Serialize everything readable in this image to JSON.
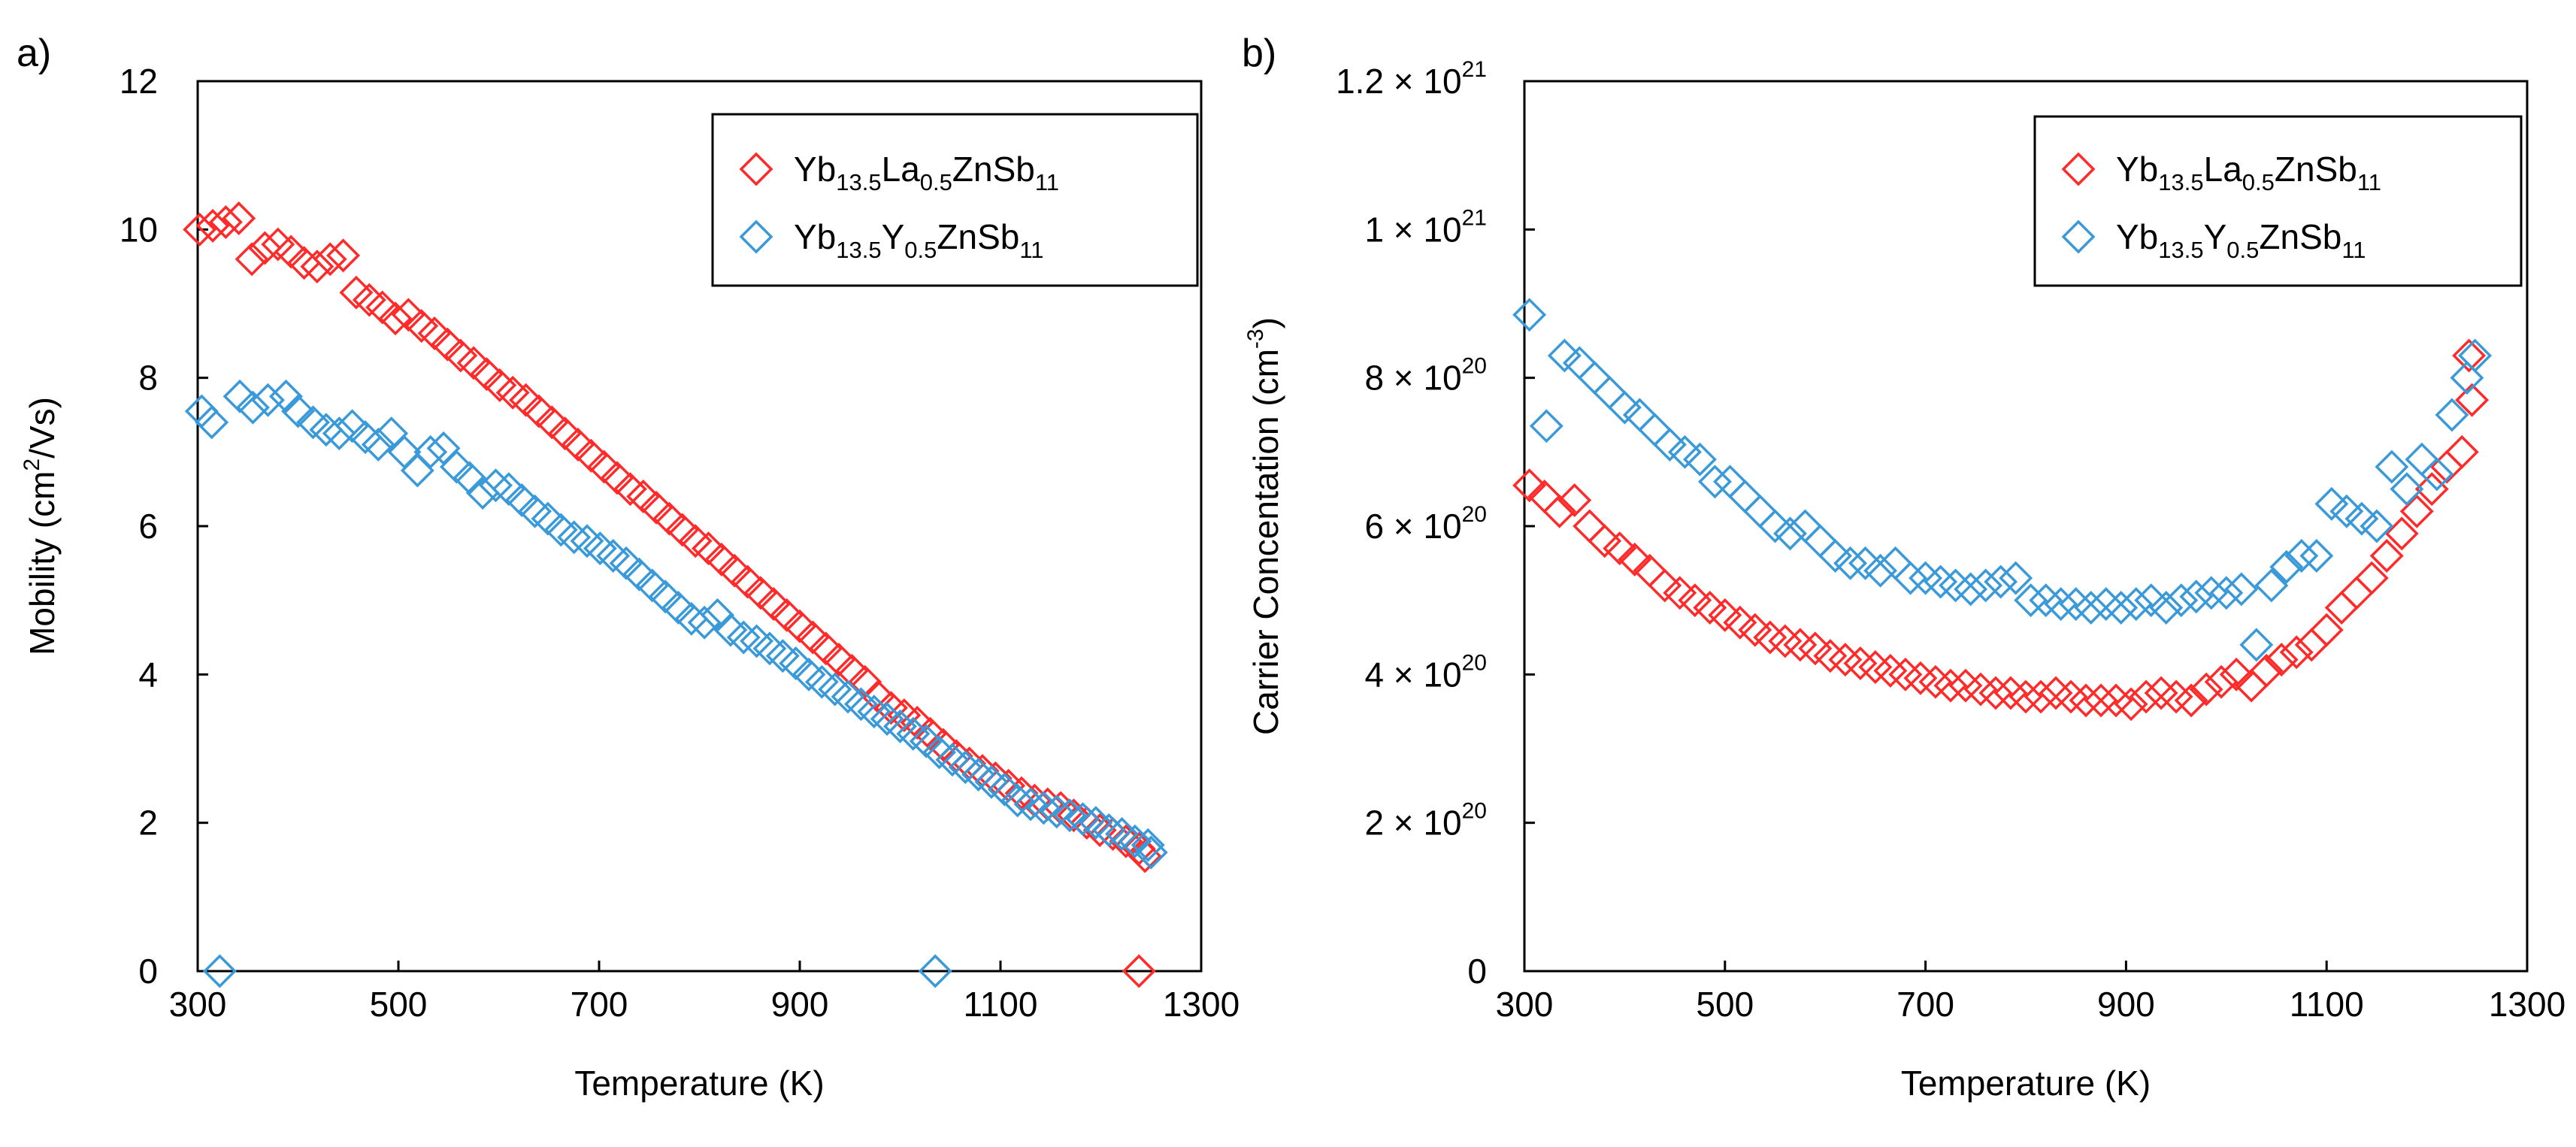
{
  "chart_data": [
    {
      "panel": "a)",
      "type": "scatter",
      "xlabel": "Temperature (K)",
      "ylabel": {
        "pre": "Mobility (cm",
        "sup": "2",
        "post": "/Vs)"
      },
      "xlim": [
        300,
        1300
      ],
      "ylim": [
        0,
        12
      ],
      "xticks": [
        300,
        500,
        700,
        900,
        1100,
        1300
      ],
      "yticks": [
        0,
        2,
        4,
        6,
        8,
        10,
        12
      ],
      "grid": false,
      "legend_position": "top-right",
      "series": [
        {
          "name": "Yb13.5La0.5ZnSb11",
          "legend": [
            {
              "t": "Yb",
              "s": ""
            },
            {
              "t": "13.5",
              "s": "sub"
            },
            {
              "t": "La",
              "s": ""
            },
            {
              "t": "0.5",
              "s": "sub"
            },
            {
              "t": "ZnSb",
              "s": ""
            },
            {
              "t": "11",
              "s": "sub"
            }
          ],
          "color": "#ff2a2a",
          "x": [
            302,
            315,
            328,
            341,
            354,
            367,
            380,
            393,
            406,
            419,
            432,
            445,
            458,
            471,
            484,
            497,
            510,
            523,
            536,
            549,
            562,
            575,
            588,
            601,
            614,
            627,
            640,
            653,
            666,
            679,
            692,
            705,
            718,
            731,
            744,
            757,
            770,
            783,
            796,
            809,
            822,
            835,
            848,
            861,
            874,
            887,
            900,
            913,
            926,
            939,
            952,
            965,
            978,
            991,
            1004,
            1017,
            1030,
            1043,
            1056,
            1069,
            1082,
            1095,
            1108,
            1121,
            1134,
            1147,
            1160,
            1173,
            1186,
            1199,
            1212,
            1225,
            1238,
            1244,
            1238
          ],
          "y": [
            10.0,
            10.05,
            10.1,
            10.15,
            9.6,
            9.75,
            9.8,
            9.7,
            9.55,
            9.5,
            9.6,
            9.65,
            9.15,
            9.05,
            8.95,
            8.8,
            8.85,
            8.7,
            8.6,
            8.45,
            8.3,
            8.2,
            8.05,
            7.9,
            7.8,
            7.7,
            7.55,
            7.4,
            7.25,
            7.1,
            6.95,
            6.8,
            6.65,
            6.5,
            6.4,
            6.25,
            6.1,
            5.95,
            5.8,
            5.7,
            5.55,
            5.4,
            5.25,
            5.1,
            4.95,
            4.8,
            4.65,
            4.5,
            4.35,
            4.2,
            4.05,
            3.9,
            3.7,
            3.55,
            3.45,
            3.35,
            3.2,
            3.05,
            2.9,
            2.8,
            2.7,
            2.6,
            2.5,
            2.4,
            2.3,
            2.25,
            2.2,
            2.1,
            2.0,
            1.9,
            1.85,
            1.75,
            1.65,
            1.55,
            0.0
          ]
        },
        {
          "name": "Yb13.5Y0.5ZnSb11",
          "legend": [
            {
              "t": "Yb",
              "s": ""
            },
            {
              "t": "13.5",
              "s": "sub"
            },
            {
              "t": "Y",
              "s": ""
            },
            {
              "t": "0.5",
              "s": "sub"
            },
            {
              "t": "ZnSb",
              "s": ""
            },
            {
              "t": "11",
              "s": "sub"
            }
          ],
          "color": "#3a9ad9",
          "x": [
            304,
            314,
            342,
            355,
            370,
            388,
            400,
            415,
            428,
            441,
            454,
            467,
            480,
            493,
            506,
            519,
            532,
            545,
            558,
            571,
            584,
            597,
            610,
            623,
            636,
            649,
            662,
            675,
            688,
            701,
            714,
            727,
            740,
            753,
            766,
            779,
            792,
            805,
            818,
            831,
            844,
            857,
            870,
            883,
            896,
            909,
            922,
            935,
            948,
            961,
            974,
            987,
            1000,
            1013,
            1026,
            1039,
            1052,
            1065,
            1078,
            1091,
            1104,
            1117,
            1130,
            1143,
            1156,
            1169,
            1182,
            1195,
            1208,
            1221,
            1234,
            1247,
            1250,
            322,
            1035
          ],
          "y": [
            7.55,
            7.4,
            7.75,
            7.6,
            7.7,
            7.75,
            7.55,
            7.4,
            7.3,
            7.25,
            7.35,
            7.2,
            7.1,
            7.25,
            7.0,
            6.75,
            7.0,
            7.05,
            6.8,
            6.65,
            6.45,
            6.55,
            6.5,
            6.35,
            6.2,
            6.1,
            5.95,
            5.85,
            5.8,
            5.7,
            5.6,
            5.5,
            5.35,
            5.2,
            5.05,
            4.9,
            4.75,
            4.7,
            4.8,
            4.6,
            4.5,
            4.45,
            4.35,
            4.25,
            4.15,
            4.0,
            3.9,
            3.8,
            3.7,
            3.6,
            3.5,
            3.4,
            3.3,
            3.2,
            3.1,
            2.95,
            2.85,
            2.75,
            2.65,
            2.55,
            2.45,
            2.3,
            2.25,
            2.2,
            2.15,
            2.1,
            2.05,
            2.0,
            1.9,
            1.85,
            1.75,
            1.7,
            1.6,
            0.0,
            0.0
          ]
        }
      ]
    },
    {
      "panel": "b)",
      "type": "scatter",
      "xlabel": "Temperature (K)",
      "ylabel": {
        "pre": "Carrier Concentation (cm",
        "sup": "-3",
        "post": ")"
      },
      "xlim": [
        300,
        1300
      ],
      "ylim": [
        0,
        1.2e+21
      ],
      "xticks": [
        300,
        500,
        700,
        900,
        1100,
        1300
      ],
      "yticks": [
        {
          "value": 0,
          "label": "0",
          "exp": ""
        },
        {
          "value": 2e+20,
          "label": "2 × 10",
          "exp": "20"
        },
        {
          "value": 4e+20,
          "label": "4 × 10",
          "exp": "20"
        },
        {
          "value": 6e+20,
          "label": "6 × 10",
          "exp": "20"
        },
        {
          "value": 8e+20,
          "label": "8 × 10",
          "exp": "20"
        },
        {
          "value": 1e+21,
          "label": "1 × 10",
          "exp": "21"
        },
        {
          "value": 1.2e+21,
          "label": "1.2 × 10",
          "exp": "21"
        }
      ],
      "grid": false,
      "legend_position": "top-right",
      "series": [
        {
          "name": "Yb13.5La0.5ZnSb11",
          "legend": [
            {
              "t": "Yb",
              "s": ""
            },
            {
              "t": "13.5",
              "s": "sub"
            },
            {
              "t": "La",
              "s": ""
            },
            {
              "t": "0.5",
              "s": "sub"
            },
            {
              "t": "ZnSb",
              "s": ""
            },
            {
              "t": "11",
              "s": "sub"
            }
          ],
          "color": "#ff2a2a",
          "x": [
            305,
            320,
            335,
            350,
            365,
            380,
            395,
            410,
            425,
            440,
            455,
            470,
            485,
            500,
            515,
            530,
            545,
            560,
            575,
            590,
            605,
            620,
            635,
            650,
            665,
            680,
            695,
            710,
            725,
            740,
            755,
            770,
            785,
            800,
            815,
            830,
            845,
            860,
            875,
            890,
            905,
            920,
            935,
            950,
            965,
            980,
            995,
            1010,
            1025,
            1040,
            1055,
            1070,
            1085,
            1100,
            1115,
            1130,
            1145,
            1160,
            1175,
            1190,
            1205,
            1220,
            1235,
            1245,
            1242
          ],
          "y": [
            6.55e+20,
            6.4e+20,
            6.2e+20,
            6.35e+20,
            6e+20,
            5.8e+20,
            5.7e+20,
            5.55e+20,
            5.4e+20,
            5.2e+20,
            5.1e+20,
            5e+20,
            4.9e+20,
            4.8e+20,
            4.7e+20,
            4.6e+20,
            4.5e+20,
            4.45e+20,
            4.4e+20,
            4.35e+20,
            4.25e+20,
            4.2e+20,
            4.15e+20,
            4.1e+20,
            4.05e+20,
            4e+20,
            3.95e+20,
            3.9e+20,
            3.85e+20,
            3.85e+20,
            3.8e+20,
            3.75e+20,
            3.75e+20,
            3.7e+20,
            3.7e+20,
            3.75e+20,
            3.7e+20,
            3.65e+20,
            3.65e+20,
            3.65e+20,
            3.6e+20,
            3.7e+20,
            3.75e+20,
            3.7e+20,
            3.65e+20,
            3.8e+20,
            3.9e+20,
            4e+20,
            3.85e+20,
            4.05e+20,
            4.2e+20,
            4.3e+20,
            4.4e+20,
            4.6e+20,
            4.9e+20,
            5.1e+20,
            5.3e+20,
            5.6e+20,
            5.9e+20,
            6.2e+20,
            6.5e+20,
            6.8e+20,
            7e+20,
            7.7e+20,
            8.3e+20
          ]
        },
        {
          "name": "Yb13.5Y0.5ZnSb11",
          "legend": [
            {
              "t": "Yb",
              "s": ""
            },
            {
              "t": "13.5",
              "s": "sub"
            },
            {
              "t": "Y",
              "s": ""
            },
            {
              "t": "0.5",
              "s": "sub"
            },
            {
              "t": "ZnSb",
              "s": ""
            },
            {
              "t": "11",
              "s": "sub"
            }
          ],
          "color": "#3a9ad9",
          "x": [
            305,
            322,
            340,
            355,
            370,
            385,
            400,
            415,
            430,
            445,
            460,
            475,
            490,
            505,
            520,
            535,
            550,
            565,
            580,
            595,
            610,
            625,
            640,
            655,
            670,
            685,
            700,
            715,
            730,
            745,
            760,
            775,
            790,
            805,
            820,
            835,
            850,
            865,
            880,
            895,
            910,
            925,
            940,
            955,
            970,
            985,
            1000,
            1015,
            1030,
            1045,
            1060,
            1075,
            1090,
            1105,
            1120,
            1135,
            1150,
            1165,
            1180,
            1195,
            1210,
            1225,
            1240,
            1248
          ],
          "y": [
            8.85e+20,
            7.35e+20,
            8.3e+20,
            8.2e+20,
            8e+20,
            7.8e+20,
            7.6e+20,
            7.5e+20,
            7.3e+20,
            7.1e+20,
            7e+20,
            6.9e+20,
            6.6e+20,
            6.6e+20,
            6.4e+20,
            6.2e+20,
            6e+20,
            5.9e+20,
            6e+20,
            5.8e+20,
            5.6e+20,
            5.5e+20,
            5.5e+20,
            5.4e+20,
            5.5e+20,
            5.3e+20,
            5.3e+20,
            5.25e+20,
            5.2e+20,
            5.15e+20,
            5.2e+20,
            5.25e+20,
            5.3e+20,
            5e+20,
            5e+20,
            4.95e+20,
            4.95e+20,
            4.9e+20,
            4.95e+20,
            4.9e+20,
            4.95e+20,
            5e+20,
            4.9e+20,
            5e+20,
            5.05e+20,
            5.1e+20,
            5.1e+20,
            5.15e+20,
            4.4e+20,
            5.2e+20,
            5.45e+20,
            5.6e+20,
            5.6e+20,
            6.3e+20,
            6.2e+20,
            6.1e+20,
            6e+20,
            6.8e+20,
            6.5e+20,
            6.9e+20,
            6.7e+20,
            7.5e+20,
            8e+20,
            8.3e+20
          ]
        }
      ]
    }
  ]
}
